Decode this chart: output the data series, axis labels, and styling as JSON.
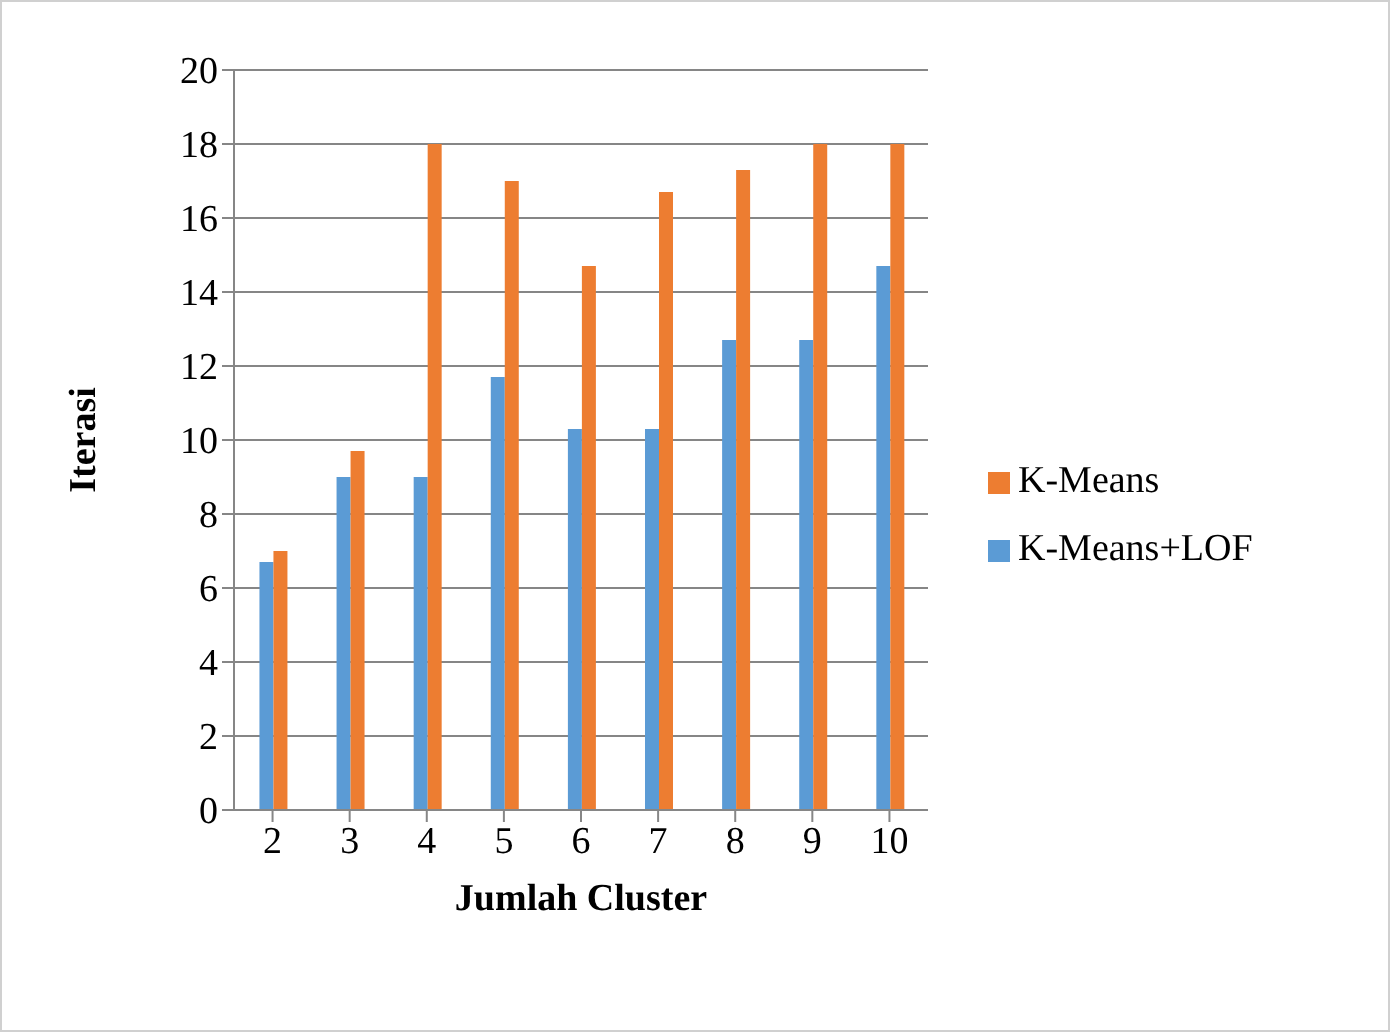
{
  "chart_data": {
    "type": "bar",
    "xlabel": "Jumlah Cluster",
    "ylabel": "Iterasi",
    "categories": [
      "2",
      "3",
      "4",
      "5",
      "6",
      "7",
      "8",
      "9",
      "10"
    ],
    "series": [
      {
        "name": "K-Means+LOF",
        "color": "#5b9bd5",
        "values": [
          6.7,
          9,
          9,
          11.7,
          10.3,
          10.3,
          12.7,
          12.7,
          14.7
        ]
      },
      {
        "name": "K-Means",
        "color": "#ed7d31",
        "values": [
          7,
          9.7,
          18,
          17,
          14.7,
          16.7,
          17.3,
          18,
          18
        ]
      }
    ],
    "ylim": [
      0,
      20
    ],
    "yticks": [
      0,
      2,
      4,
      6,
      8,
      10,
      12,
      14,
      16,
      18,
      20
    ],
    "grid": "y",
    "legend": "right"
  }
}
